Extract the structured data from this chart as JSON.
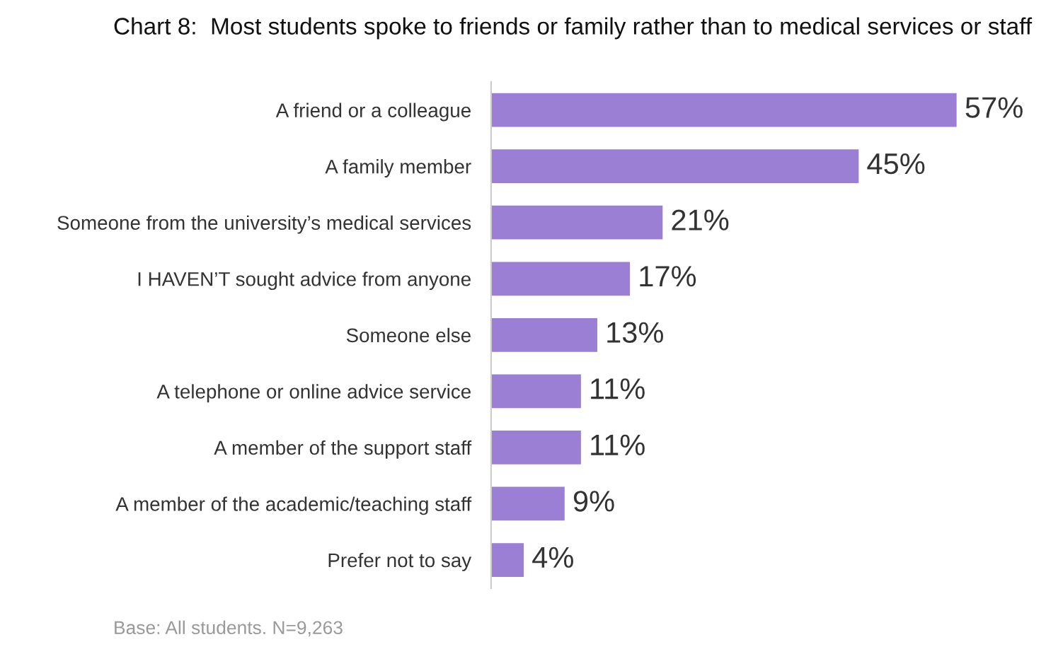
{
  "chart_data": {
    "type": "bar",
    "orientation": "horizontal",
    "title": "Chart 8:  Most students spoke to friends or family rather than to medical services or staff",
    "categories": [
      "A friend or a colleague",
      "A family member",
      "Someone from the university’s medical services",
      "I HAVEN’T sought advice from anyone",
      "Someone else",
      "A telephone or online advice service",
      "A member of the support staff",
      "A member of the academic/teaching staff",
      "Prefer not to say"
    ],
    "values": [
      57,
      45,
      21,
      17,
      13,
      11,
      11,
      9,
      4
    ],
    "value_labels": [
      "57%",
      "45%",
      "21%",
      "17%",
      "13%",
      "11%",
      "11%",
      "9%",
      "4%"
    ],
    "color": "#9a7fd4",
    "annotations": [
      "Base: All students. N=9,263"
    ],
    "grid": false,
    "legend": false,
    "tick_labels": "y"
  }
}
